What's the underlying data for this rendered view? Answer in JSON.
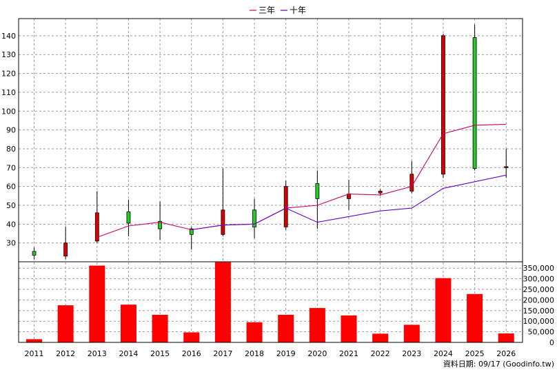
{
  "chart_data": {
    "type": "candlestick",
    "legend": {
      "placement": "top-center",
      "items": [
        {
          "label": "三年",
          "color": "#cc0066"
        },
        {
          "label": "十年",
          "color": "#6600cc"
        }
      ]
    },
    "categories": [
      "2011",
      "2012",
      "2013",
      "2014",
      "2015",
      "2016",
      "2017",
      "2018",
      "2019",
      "2020",
      "2021",
      "2022",
      "2023",
      "2024",
      "2025",
      "2026"
    ],
    "price_axis": {
      "ylim": [
        20,
        148
      ],
      "ticks": [
        "30",
        "40",
        "50",
        "60",
        "70",
        "80",
        "90",
        "100",
        "110",
        "120",
        "130",
        "140"
      ],
      "side": "left",
      "grid": true
    },
    "volume_axis": {
      "ylim": [
        0,
        380000
      ],
      "ticks": [
        "0",
        "50,000",
        "100,000",
        "150,000",
        "200,000",
        "250,000",
        "300,000",
        "350,000"
      ],
      "side": "right",
      "grid": true
    },
    "candles": [
      {
        "x": "2011",
        "open": 23.5,
        "close": 25.5,
        "high": 27.5,
        "low": 21.5
      },
      {
        "x": "2012",
        "open": 30,
        "close": 23,
        "high": 38.5,
        "low": 21.5
      },
      {
        "x": "2013",
        "open": 46,
        "close": 31,
        "high": 57.5,
        "low": 30
      },
      {
        "x": "2014",
        "open": 40.5,
        "close": 46.5,
        "high": 53,
        "low": 33.5
      },
      {
        "x": "2015",
        "open": 37.5,
        "close": 41.5,
        "high": 52,
        "low": 31.5
      },
      {
        "x": "2016",
        "open": 34.5,
        "close": 37.5,
        "high": 38.5,
        "low": 26.5
      },
      {
        "x": "2017",
        "open": 47.5,
        "close": 34.5,
        "high": 69.5,
        "low": 33.5
      },
      {
        "x": "2018",
        "open": 38.5,
        "close": 47.5,
        "high": 53.5,
        "low": 32.5
      },
      {
        "x": "2019",
        "open": 60,
        "close": 38.5,
        "high": 63,
        "low": 37
      },
      {
        "x": "2020",
        "open": 53.5,
        "close": 61.5,
        "high": 68.5,
        "low": 37.5
      },
      {
        "x": "2021",
        "open": 56,
        "close": 53.5,
        "high": 63.5,
        "low": 47.5
      },
      {
        "x": "2022",
        "open": 57.5,
        "close": 56.5,
        "high": 58.5,
        "low": 55
      },
      {
        "x": "2023",
        "open": 66.5,
        "close": 57.5,
        "high": 73.5,
        "low": 56.5
      },
      {
        "x": "2024",
        "open": 140,
        "close": 66.5,
        "high": 141,
        "low": 64.5
      },
      {
        "x": "2025",
        "open": 69.5,
        "close": 139,
        "high": 146,
        "low": 68.5
      },
      {
        "x": "2026",
        "open": 70.5,
        "close": 70,
        "high": 80,
        "low": 64.5
      }
    ],
    "series": [
      {
        "name": "三年",
        "color": "#cc0066",
        "x": [
          "2013",
          "2014",
          "2015",
          "2016",
          "2017",
          "2018",
          "2019",
          "2020",
          "2021",
          "2022",
          "2023",
          "2024",
          "2025",
          "2026"
        ],
        "values": [
          33,
          39,
          41,
          37,
          39.5,
          40,
          48.5,
          50,
          56,
          55.5,
          60,
          88,
          92.5,
          93
        ]
      },
      {
        "name": "十年",
        "color": "#6600cc",
        "x": [
          "2016",
          "2017",
          "2018",
          "2019",
          "2020",
          "2021",
          "2022",
          "2023",
          "2024",
          "2025",
          "2026"
        ],
        "values": [
          37,
          39.5,
          40,
          48.5,
          41,
          44,
          47,
          48.5,
          59,
          62.5,
          66
        ]
      }
    ],
    "volume": {
      "color": "#ff0000",
      "values": [
        15000,
        175000,
        362000,
        178000,
        130000,
        47000,
        378000,
        95000,
        130000,
        162000,
        127000,
        41000,
        83000,
        303000,
        228000,
        42000
      ]
    }
  },
  "footer": {
    "text": "資料日期: 09/17 (Goodinfo.tw)"
  }
}
